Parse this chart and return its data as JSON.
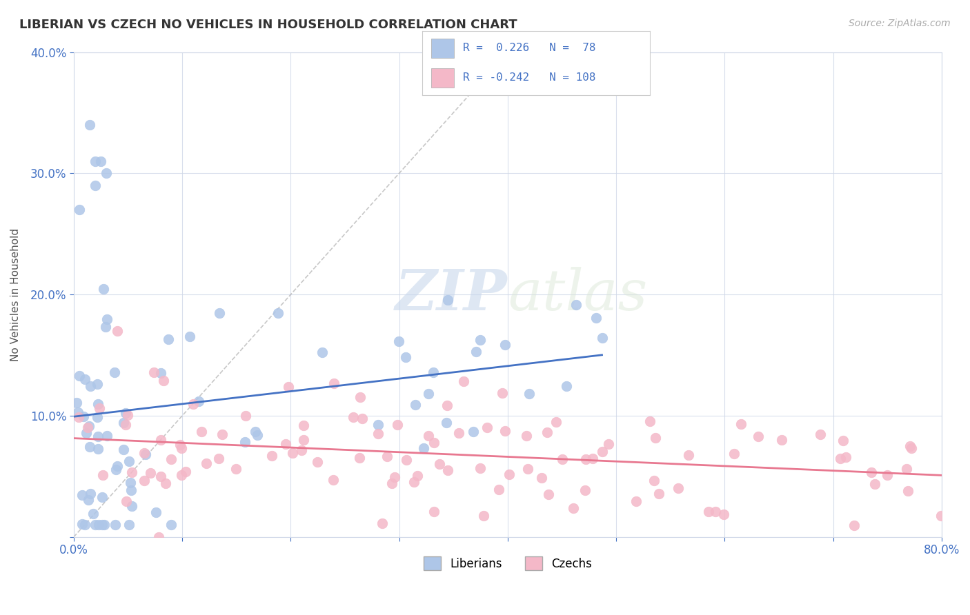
{
  "title": "LIBERIAN VS CZECH NO VEHICLES IN HOUSEHOLD CORRELATION CHART",
  "source": "Source: ZipAtlas.com",
  "ylabel": "No Vehicles in Household",
  "xlim": [
    0.0,
    0.8
  ],
  "ylim": [
    0.0,
    0.4
  ],
  "liberian_color": "#aec6e8",
  "czech_color": "#f4b8c8",
  "liberian_line_color": "#4472c4",
  "czech_line_color": "#e87890",
  "diagonal_color": "#b0b0b0",
  "legend_text_color": "#4472c4",
  "tick_label_color": "#4472c4",
  "R_liberian": 0.226,
  "N_liberian": 78,
  "R_czech": -0.242,
  "N_czech": 108,
  "watermark_zip": "ZIP",
  "watermark_atlas": "atlas",
  "background_color": "#ffffff"
}
